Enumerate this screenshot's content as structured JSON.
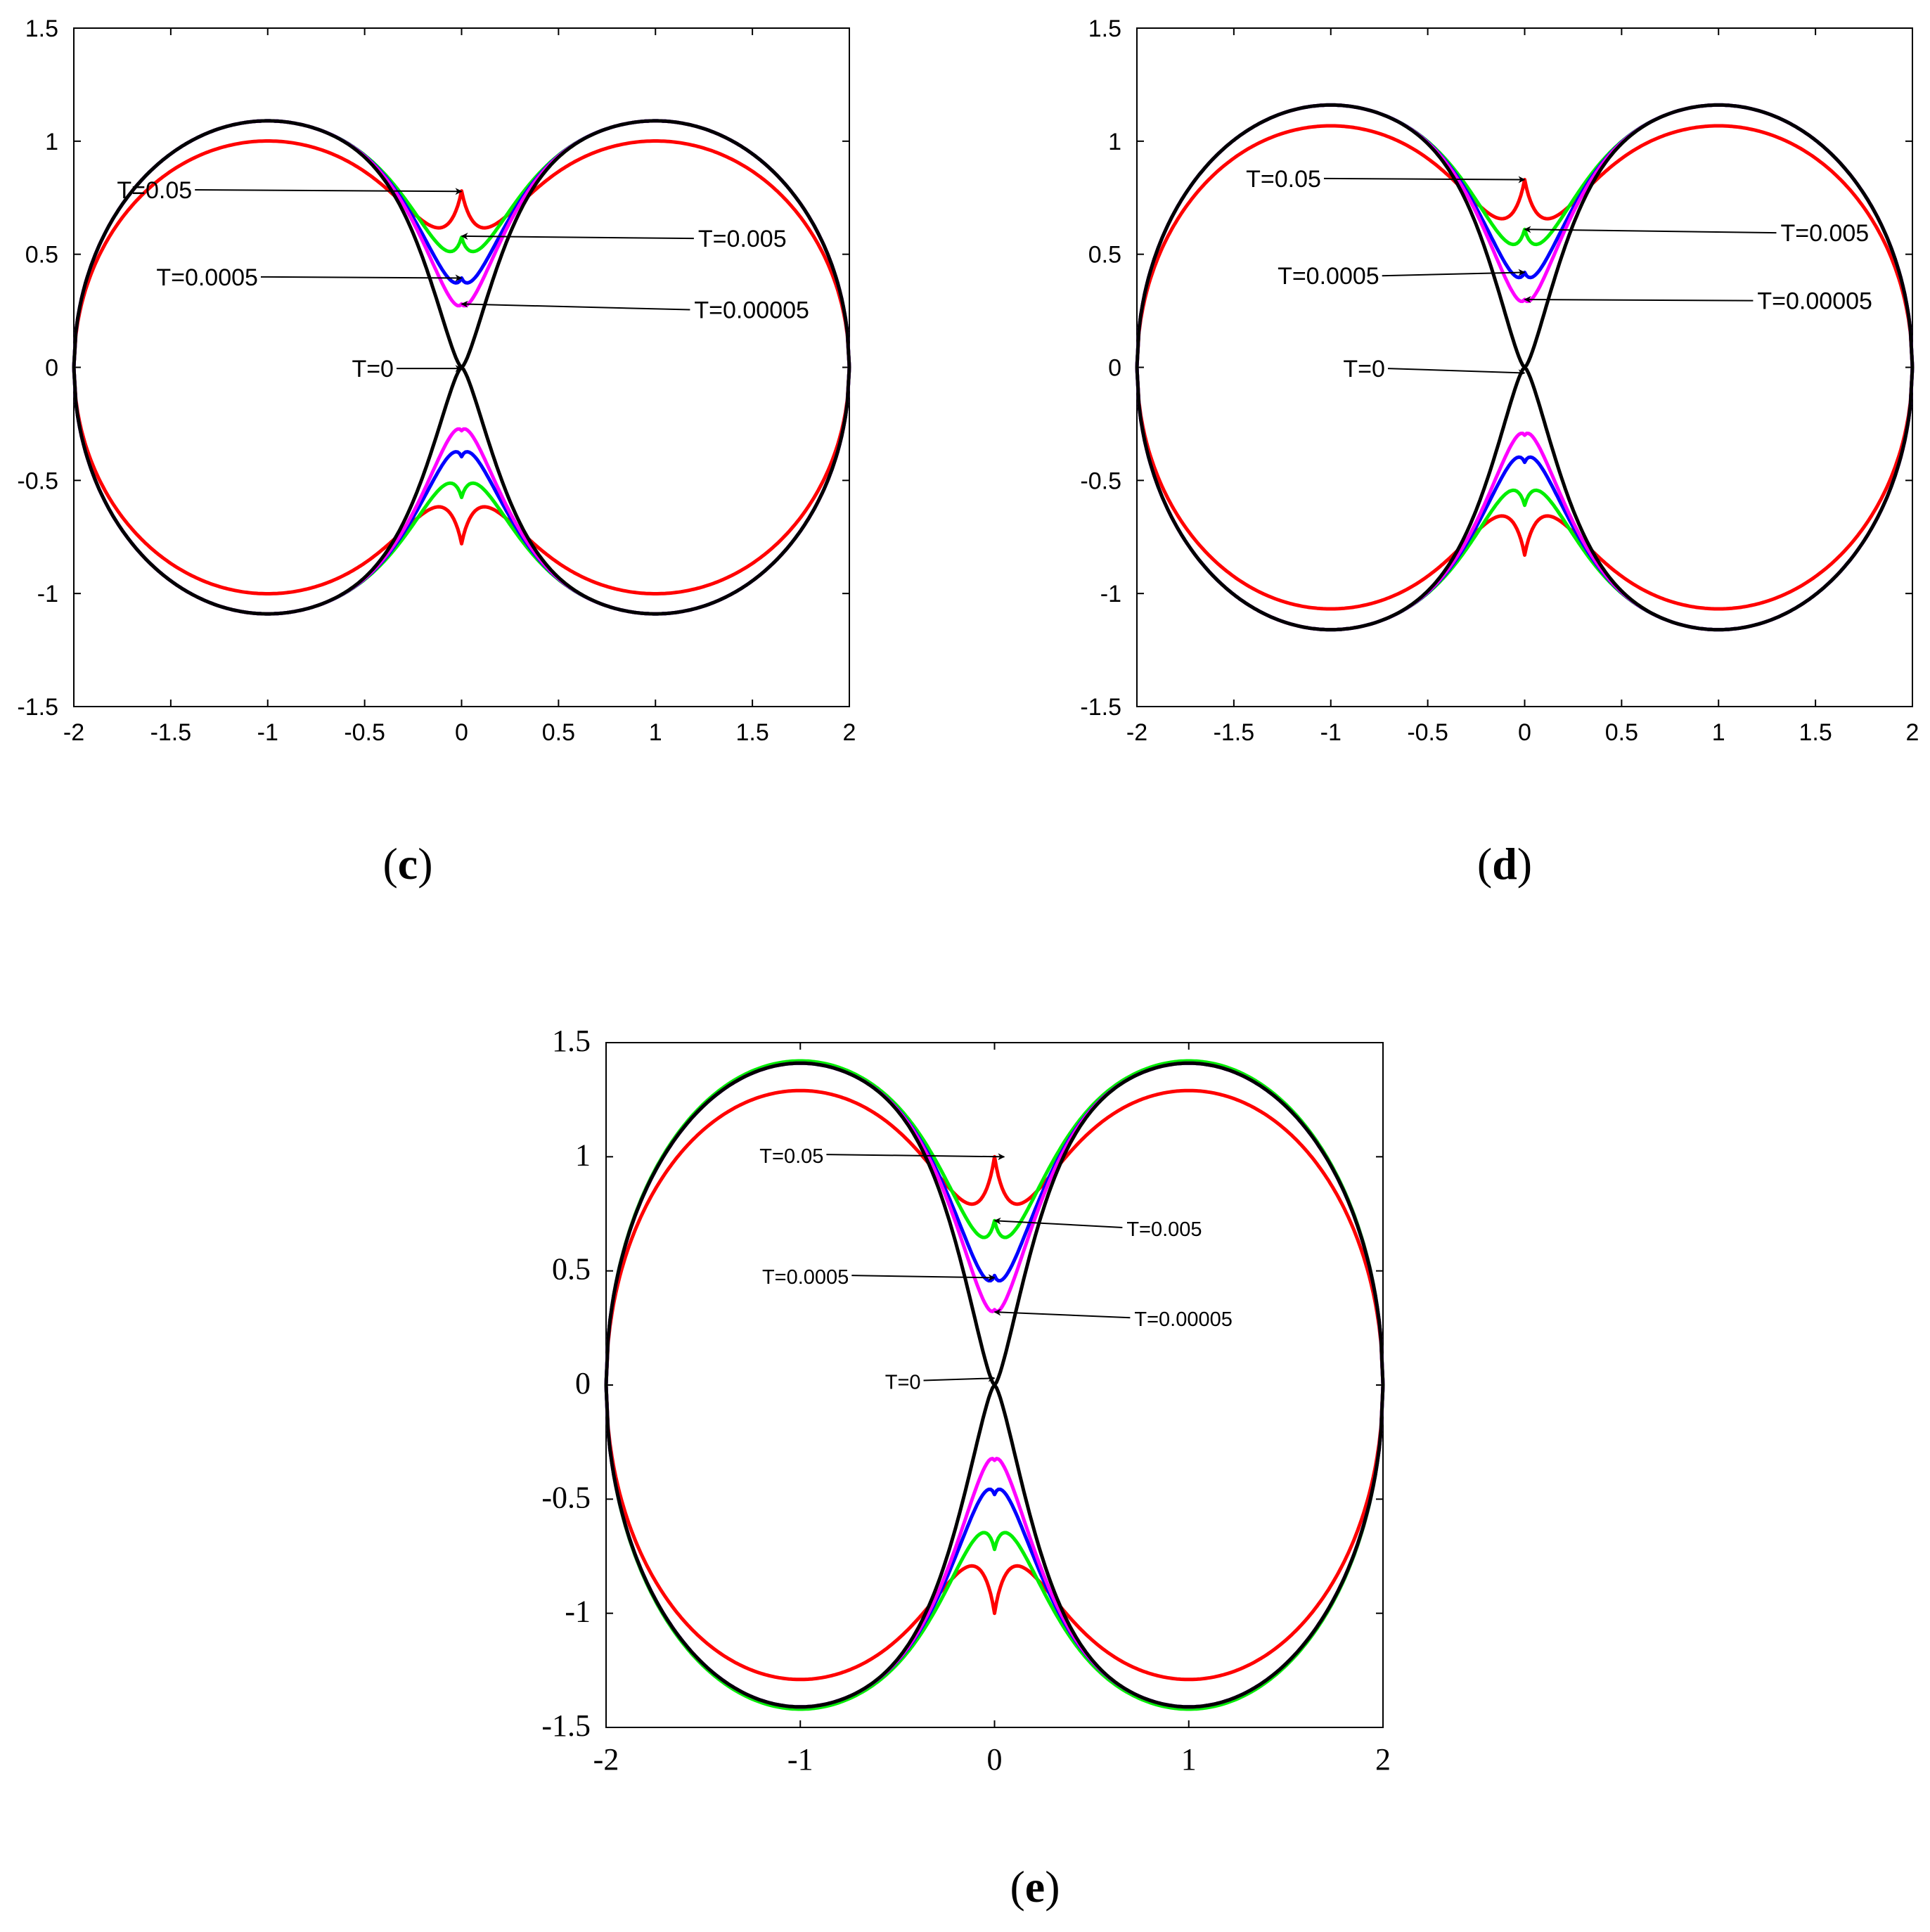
{
  "chart_data": [
    {
      "type": "line",
      "panel_label": "c",
      "xlim": [
        -2,
        2
      ],
      "ylim": [
        -1.5,
        1.5
      ],
      "xticks": [
        "-2",
        "-1.5",
        "-1",
        "-0.5",
        "0",
        "0.5",
        "1",
        "1.5",
        "2"
      ],
      "yticks": [
        "-1.5",
        "-1",
        "-0.5",
        "0",
        "0.5",
        "1",
        "1.5"
      ],
      "grid": false,
      "series": [
        {
          "color": "#ff0000",
          "params": {
            "a": 1.001,
            "h": 0.78
          }
        },
        {
          "color": "#00ee00",
          "params": {
            "a": 1.09,
            "h": 0.575
          }
        },
        {
          "color": "#0000ff",
          "params": {
            "a": 1.09,
            "h": 0.395
          }
        },
        {
          "color": "#ff00ff",
          "params": {
            "a": 1.09,
            "h": 0.28
          }
        },
        {
          "color": "#000000",
          "params": {
            "a": 1.09,
            "h": 0.0
          }
        }
      ],
      "annotations": [
        {
          "label": "T=0.05",
          "text_at": [
            -1.39,
            0.785
          ],
          "arrow_to": [
            0.0,
            0.778
          ]
        },
        {
          "label": "T=0.005",
          "text_at": [
            1.22,
            0.57
          ],
          "arrow_to": [
            0.0,
            0.58
          ]
        },
        {
          "label": "T=0.0005",
          "text_at": [
            -1.05,
            0.4
          ],
          "arrow_to": [
            0.0,
            0.395
          ]
        },
        {
          "label": "T=0.00005",
          "text_at": [
            1.2,
            0.255
          ],
          "arrow_to": [
            0.0,
            0.28
          ]
        },
        {
          "label": "T=0",
          "text_at": [
            -0.35,
            -0.005
          ],
          "arrow_to": [
            0.0,
            -0.005
          ]
        }
      ]
    },
    {
      "type": "line",
      "panel_label": "d",
      "xlim": [
        -2,
        2
      ],
      "ylim": [
        -1.5,
        1.5
      ],
      "xticks": [
        "-2",
        "-1.5",
        "-1",
        "-0.5",
        "0",
        "0.5",
        "1",
        "1.5",
        "2"
      ],
      "yticks": [
        "-1.5",
        "-1",
        "-0.5",
        "0",
        "0.5",
        "1",
        "1.5"
      ],
      "grid": false,
      "series": [
        {
          "color": "#ff0000",
          "params": {
            "a": 1.068,
            "h": 0.83
          }
        },
        {
          "color": "#00ee00",
          "params": {
            "a": 1.16,
            "h": 0.61
          }
        },
        {
          "color": "#0000ff",
          "params": {
            "a": 1.16,
            "h": 0.42
          }
        },
        {
          "color": "#ff00ff",
          "params": {
            "a": 1.16,
            "h": 0.3
          }
        },
        {
          "color": "#000000",
          "params": {
            "a": 1.16,
            "h": 0.0
          }
        }
      ],
      "annotations": [
        {
          "label": "T=0.05",
          "text_at": [
            -1.05,
            0.835
          ],
          "arrow_to": [
            0.0,
            0.83
          ]
        },
        {
          "label": "T=0.005",
          "text_at": [
            1.32,
            0.595
          ],
          "arrow_to": [
            0.0,
            0.61
          ]
        },
        {
          "label": "T=0.0005",
          "text_at": [
            -0.75,
            0.405
          ],
          "arrow_to": [
            0.0,
            0.42
          ]
        },
        {
          "label": "T=0.00005",
          "text_at": [
            1.2,
            0.295
          ],
          "arrow_to": [
            0.0,
            0.3
          ]
        },
        {
          "label": "T=0",
          "text_at": [
            -0.72,
            -0.005
          ],
          "arrow_to": [
            0.0,
            -0.025
          ]
        }
      ]
    },
    {
      "type": "line",
      "panel_label": "e",
      "xlim": [
        -2,
        2
      ],
      "ylim": [
        -1.5,
        1.5
      ],
      "xticks": [
        "-2",
        "-1",
        "0",
        "1",
        "2"
      ],
      "yticks": [
        "-1.5",
        "-1",
        "-0.5",
        "0",
        "0.5",
        "1",
        "1.5"
      ],
      "grid": false,
      "series": [
        {
          "color": "#ff0000",
          "params": {
            "a": 1.29,
            "h": 1.0
          }
        },
        {
          "color": "#00ee00",
          "params": {
            "a": 1.42,
            "h": 0.72
          }
        },
        {
          "color": "#0000ff",
          "params": {
            "a": 1.41,
            "h": 0.48
          }
        },
        {
          "color": "#ff00ff",
          "params": {
            "a": 1.41,
            "h": 0.33
          }
        },
        {
          "color": "#000000",
          "params": {
            "a": 1.41,
            "h": 0.0
          }
        }
      ],
      "annotations": [
        {
          "label": "T=0.05",
          "text_at": [
            -0.88,
            1.01
          ],
          "arrow_to": [
            0.05,
            1.0
          ]
        },
        {
          "label": "T=0.005",
          "text_at": [
            0.68,
            0.69
          ],
          "arrow_to": [
            0.0,
            0.72
          ]
        },
        {
          "label": "T=0.0005",
          "text_at": [
            -0.75,
            0.48
          ],
          "arrow_to": [
            0.0,
            0.47
          ]
        },
        {
          "label": "T=0.00005",
          "text_at": [
            0.72,
            0.295
          ],
          "arrow_to": [
            0.0,
            0.32
          ]
        },
        {
          "label": "T=0",
          "text_at": [
            -0.38,
            0.02
          ],
          "arrow_to": [
            0.0,
            0.03
          ]
        }
      ]
    }
  ]
}
